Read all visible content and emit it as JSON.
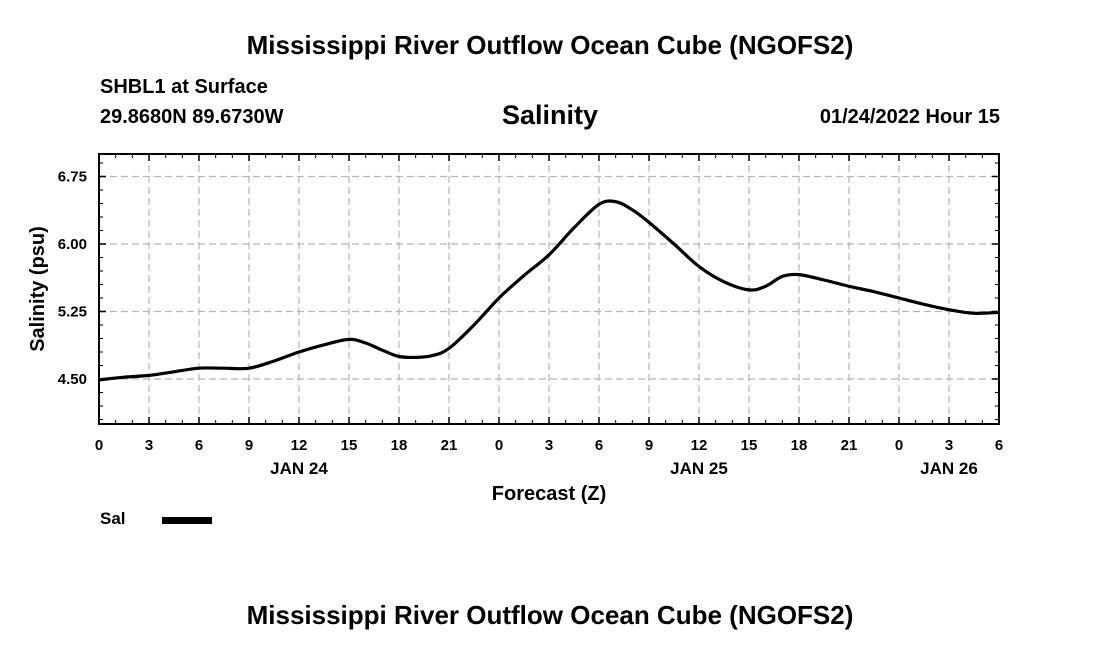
{
  "header": {
    "title": "Mississippi River Outflow Ocean Cube (NGOFS2)",
    "station": "SHBL1 at Surface",
    "coords": "29.8680N  89.6730W",
    "variable": "Salinity",
    "datetime": "01/24/2022 Hour 15"
  },
  "footer": {
    "title": "Mississippi River Outflow Ocean Cube (NGOFS2)"
  },
  "legend": {
    "label": "Sal",
    "color": "#000000"
  },
  "chart_data": {
    "type": "line",
    "title": "Salinity",
    "xlabel": "Forecast (Z)",
    "ylabel": "Salinity (psu)",
    "xlim": [
      0,
      54
    ],
    "ylim": [
      4.0,
      7.0
    ],
    "grid": true,
    "yticks": [
      4.5,
      5.25,
      6.0,
      6.75
    ],
    "ytick_labels": [
      "4.50",
      "5.25",
      "6.00",
      "6.75"
    ],
    "xticks": [
      0,
      3,
      6,
      9,
      12,
      15,
      18,
      21,
      24,
      27,
      30,
      33,
      36,
      39,
      42,
      45,
      48,
      51,
      54
    ],
    "xtick_labels": [
      "0",
      "3",
      "6",
      "9",
      "12",
      "15",
      "18",
      "21",
      "0",
      "3",
      "6",
      "9",
      "12",
      "15",
      "18",
      "21",
      "0",
      "3",
      "6"
    ],
    "date_labels": [
      {
        "x": 12,
        "label": "JAN 24"
      },
      {
        "x": 36,
        "label": "JAN 25"
      },
      {
        "x": 51,
        "label": "JAN 26"
      }
    ],
    "series": [
      {
        "name": "Sal",
        "color": "#000000",
        "x": [
          0,
          1.5,
          3,
          4.5,
          6,
          7.5,
          9,
          10.5,
          12,
          13.5,
          15,
          16,
          17,
          18,
          19,
          20,
          21,
          22.5,
          24,
          25.5,
          27,
          28.5,
          30,
          31,
          32,
          33,
          34.5,
          36,
          37.5,
          39,
          40,
          41,
          42,
          43.5,
          45,
          46.5,
          48,
          49.5,
          51,
          52.5,
          54
        ],
        "values": [
          4.49,
          4.52,
          4.54,
          4.58,
          4.62,
          4.62,
          4.62,
          4.7,
          4.8,
          4.88,
          4.94,
          4.9,
          4.82,
          4.75,
          4.74,
          4.76,
          4.84,
          5.1,
          5.4,
          5.65,
          5.88,
          6.18,
          6.44,
          6.47,
          6.38,
          6.24,
          6.0,
          5.75,
          5.58,
          5.49,
          5.53,
          5.64,
          5.66,
          5.6,
          5.53,
          5.47,
          5.4,
          5.33,
          5.27,
          5.23,
          5.24
        ]
      }
    ]
  }
}
